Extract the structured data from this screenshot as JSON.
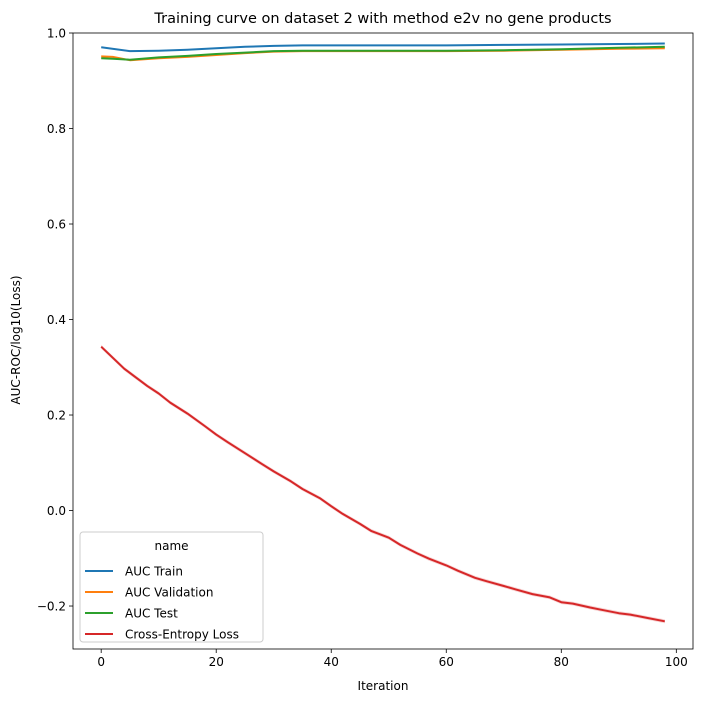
{
  "chart_data": {
    "type": "line",
    "title": "Training curve on dataset 2 with method e2v no gene products",
    "xlabel": "Iteration",
    "ylabel": "AUC-ROC/log10(Loss)",
    "xlim": [
      -4.9,
      102.9
    ],
    "ylim": [
      -0.29,
      1.0
    ],
    "x_ticks": [
      0,
      20,
      40,
      60,
      80,
      100
    ],
    "x_tick_labels": [
      "0",
      "20",
      "40",
      "60",
      "80",
      "100"
    ],
    "y_ticks": [
      -0.2,
      0.0,
      0.2,
      0.4,
      0.6,
      0.8,
      1.0
    ],
    "y_tick_labels": [
      "−0.2",
      "0.0",
      "0.2",
      "0.4",
      "0.6",
      "0.8",
      "1.0"
    ],
    "grid": false,
    "legend": {
      "title": "name",
      "placement": "lower-left"
    },
    "series": [
      {
        "name": "AUC Train",
        "color": "#1f77b4",
        "x": [
          0,
          5,
          10,
          15,
          20,
          25,
          30,
          35,
          40,
          50,
          60,
          70,
          80,
          90,
          98
        ],
        "y": [
          0.97,
          0.962,
          0.963,
          0.965,
          0.968,
          0.971,
          0.973,
          0.974,
          0.974,
          0.974,
          0.974,
          0.975,
          0.976,
          0.977,
          0.978
        ]
      },
      {
        "name": "AUC Validation",
        "color": "#ff7f0e",
        "x": [
          0,
          2,
          5,
          10,
          15,
          20,
          25,
          30,
          35,
          40,
          50,
          60,
          70,
          80,
          90,
          98
        ],
        "y": [
          0.951,
          0.95,
          0.943,
          0.947,
          0.95,
          0.954,
          0.958,
          0.961,
          0.962,
          0.962,
          0.962,
          0.962,
          0.963,
          0.965,
          0.967,
          0.968
        ]
      },
      {
        "name": "AUC Test",
        "color": "#2ca02c",
        "x": [
          0,
          2,
          5,
          10,
          15,
          20,
          25,
          30,
          35,
          40,
          50,
          60,
          70,
          80,
          90,
          98
        ],
        "y": [
          0.947,
          0.946,
          0.944,
          0.949,
          0.952,
          0.956,
          0.959,
          0.962,
          0.963,
          0.963,
          0.963,
          0.963,
          0.964,
          0.966,
          0.969,
          0.971
        ]
      },
      {
        "name": "Cross-Entropy Loss",
        "color": "#d62728",
        "x": [
          0,
          2,
          4,
          6,
          8,
          10,
          12,
          15,
          18,
          20,
          22,
          25,
          28,
          30,
          33,
          35,
          38,
          40,
          42,
          45,
          47,
          50,
          52,
          55,
          57,
          60,
          62,
          65,
          67,
          70,
          72,
          75,
          78,
          80,
          82,
          85,
          87,
          90,
          92,
          95,
          98
        ],
        "y": [
          0.343,
          0.32,
          0.297,
          0.279,
          0.261,
          0.245,
          0.226,
          0.203,
          0.177,
          0.159,
          0.143,
          0.12,
          0.097,
          0.082,
          0.061,
          0.045,
          0.026,
          0.009,
          -0.007,
          -0.028,
          -0.043,
          -0.057,
          -0.072,
          -0.09,
          -0.101,
          -0.115,
          -0.126,
          -0.141,
          -0.148,
          -0.158,
          -0.165,
          -0.175,
          -0.182,
          -0.192,
          -0.195,
          -0.203,
          -0.208,
          -0.215,
          -0.218,
          -0.225,
          -0.232
        ]
      }
    ]
  }
}
